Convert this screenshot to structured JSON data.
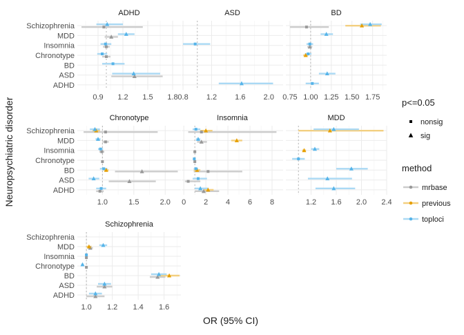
{
  "figure": {
    "xlabel": "OR (95% CI)",
    "ylabel": "Neuropsychiatric disorder"
  },
  "chart_data": {
    "type": "scatter",
    "categories": [
      "Schizophrenia",
      "MDD",
      "Insomnia",
      "Chronotype",
      "BD",
      "ASD",
      "ADHD"
    ],
    "legend": {
      "shape": {
        "title": "p<=0.05",
        "entries": [
          {
            "label": "nonsig",
            "marker": "square"
          },
          {
            "label": "sig",
            "marker": "triangle"
          }
        ]
      },
      "color": {
        "title": "method",
        "entries": [
          {
            "label": "mrbase",
            "color": "#999999",
            "ci_color": "#cccccc"
          },
          {
            "label": "previous",
            "color": "#E69F00",
            "ci_color": "#f3cf80"
          },
          {
            "label": "toploci",
            "color": "#56B4E9",
            "ci_color": "#aad9f4"
          }
        ]
      },
      "placement": "right"
    },
    "grid": true,
    "reference_line": 1,
    "panels": [
      {
        "title": "ADHD",
        "xlim": [
          0.65,
          1.9
        ],
        "xticks": [
          0.9,
          1.2,
          1.5,
          1.8
        ],
        "xtick_labels": [
          "0.9",
          "1.2",
          "1.5",
          "1.8"
        ],
        "points": [
          {
            "category": "Schizophrenia",
            "method": "mrbase",
            "or": 0.97,
            "lo": 0.7,
            "hi": 1.44,
            "sig": false
          },
          {
            "category": "Schizophrenia",
            "method": "toploci",
            "or": 1.01,
            "lo": 0.88,
            "hi": 1.2,
            "sig": true
          },
          {
            "category": "MDD",
            "method": "mrbase",
            "or": 1.06,
            "lo": 0.98,
            "hi": 1.14,
            "sig": true
          },
          {
            "category": "MDD",
            "method": "toploci",
            "or": 1.24,
            "lo": 1.14,
            "hi": 1.34,
            "sig": true
          },
          {
            "category": "Insomnia",
            "method": "mrbase",
            "or": 1.0,
            "lo": 0.96,
            "hi": 1.04,
            "sig": false
          },
          {
            "category": "Insomnia",
            "method": "toploci",
            "or": 0.99,
            "lo": 0.93,
            "hi": 1.06,
            "sig": false
          },
          {
            "category": "Chronotype",
            "method": "mrbase",
            "or": 1.0,
            "lo": 0.95,
            "hi": 1.05,
            "sig": false
          },
          {
            "category": "Chronotype",
            "method": "toploci",
            "or": 0.95,
            "lo": 0.89,
            "hi": 1.01,
            "sig": false
          },
          {
            "category": "BD",
            "method": "toploci",
            "or": 1.08,
            "lo": 0.95,
            "hi": 1.22,
            "sig": false
          },
          {
            "category": "ASD",
            "method": "mrbase",
            "or": 1.34,
            "lo": 1.06,
            "hi": 1.68,
            "sig": true
          },
          {
            "category": "ASD",
            "method": "toploci",
            "or": 1.33,
            "lo": 1.07,
            "hi": 1.65,
            "sig": true
          }
        ]
      },
      {
        "title": "ASD",
        "xlim": [
          0.78,
          2.2
        ],
        "xticks": [
          0.8,
          1.2,
          1.6,
          2.0
        ],
        "xtick_labels": [
          "0.8",
          "1.2",
          "1.6",
          "2.0"
        ],
        "points": [
          {
            "category": "Insomnia",
            "method": "toploci",
            "or": 0.97,
            "lo": 0.8,
            "hi": 1.18,
            "sig": false
          },
          {
            "category": "ADHD",
            "method": "toploci",
            "or": 1.62,
            "lo": 1.3,
            "hi": 2.06,
            "sig": true
          }
        ]
      },
      {
        "title": "BD",
        "xlim": [
          0.7,
          1.92
        ],
        "xticks": [
          0.75,
          1.0,
          1.25,
          1.5,
          1.75
        ],
        "xtick_labels": [
          "0.75",
          "1.00",
          "1.25",
          "1.50",
          "1.75"
        ],
        "points": [
          {
            "category": "Schizophrenia",
            "method": "mrbase",
            "or": 0.95,
            "lo": 0.75,
            "hi": 1.22,
            "sig": false
          },
          {
            "category": "Schizophrenia",
            "method": "previous",
            "or": 1.62,
            "lo": 1.42,
            "hi": 1.85,
            "sig": true
          },
          {
            "category": "Schizophrenia",
            "method": "toploci",
            "or": 1.72,
            "lo": 1.6,
            "hi": 1.86,
            "sig": true
          },
          {
            "category": "MDD",
            "method": "toploci",
            "or": 1.19,
            "lo": 1.12,
            "hi": 1.27,
            "sig": true
          },
          {
            "category": "Insomnia",
            "method": "mrbase",
            "or": 0.99,
            "lo": 0.96,
            "hi": 1.02,
            "sig": true
          },
          {
            "category": "Insomnia",
            "method": "toploci",
            "or": 0.99,
            "lo": 0.95,
            "hi": 1.03,
            "sig": false
          },
          {
            "category": "Chronotype",
            "method": "previous",
            "or": 0.94,
            "lo": 0.91,
            "hi": 0.97,
            "sig": true
          },
          {
            "category": "Chronotype",
            "method": "toploci",
            "or": 0.97,
            "lo": 0.93,
            "hi": 1.01,
            "sig": false
          },
          {
            "category": "ASD",
            "method": "toploci",
            "or": 1.2,
            "lo": 1.1,
            "hi": 1.3,
            "sig": true
          },
          {
            "category": "ADHD",
            "method": "toploci",
            "or": 1.02,
            "lo": 0.94,
            "hi": 1.1,
            "sig": false
          }
        ]
      },
      {
        "title": "Chronotype",
        "xlim": [
          0.6,
          2.25
        ],
        "xticks": [
          1.0,
          1.5,
          2.0
        ],
        "xtick_labels": [
          "1.0",
          "1.5",
          "2.0"
        ],
        "points": [
          {
            "category": "Schizophrenia",
            "method": "mrbase",
            "or": 1.05,
            "lo": 0.7,
            "hi": 1.88,
            "sig": false
          },
          {
            "category": "Schizophrenia",
            "method": "previous",
            "or": 0.9,
            "lo": 0.84,
            "hi": 0.96,
            "sig": true
          },
          {
            "category": "Schizophrenia",
            "method": "toploci",
            "or": 0.88,
            "lo": 0.8,
            "hi": 0.96,
            "sig": true
          },
          {
            "category": "MDD",
            "method": "mrbase",
            "or": 1.05,
            "lo": 1.0,
            "hi": 1.1,
            "sig": false
          },
          {
            "category": "MDD",
            "method": "toploci",
            "or": 0.93,
            "lo": 0.89,
            "hi": 0.97,
            "sig": true
          },
          {
            "category": "Insomnia",
            "method": "mrbase",
            "or": 0.99,
            "lo": 0.95,
            "hi": 1.03,
            "sig": false
          },
          {
            "category": "Insomnia",
            "method": "toploci",
            "or": 0.97,
            "lo": 0.93,
            "hi": 1.01,
            "sig": false
          },
          {
            "category": "Chronotype",
            "method": "mrbase",
            "or": 1.0,
            "lo": 1.0,
            "hi": 1.0,
            "sig": false
          },
          {
            "category": "BD",
            "method": "mrbase",
            "or": 1.63,
            "lo": 1.2,
            "hi": 2.2,
            "sig": true
          },
          {
            "category": "BD",
            "method": "previous",
            "or": 1.06,
            "lo": 1.02,
            "hi": 1.1,
            "sig": true
          },
          {
            "category": "BD",
            "method": "toploci",
            "or": 1.02,
            "lo": 0.96,
            "hi": 1.08,
            "sig": false
          },
          {
            "category": "ASD",
            "method": "mrbase",
            "or": 1.43,
            "lo": 1.1,
            "hi": 1.85,
            "sig": true
          },
          {
            "category": "ASD",
            "method": "toploci",
            "or": 0.86,
            "lo": 0.78,
            "hi": 0.95,
            "sig": true
          },
          {
            "category": "ADHD",
            "method": "mrbase",
            "or": 0.96,
            "lo": 0.9,
            "hi": 1.02,
            "sig": false
          },
          {
            "category": "ADHD",
            "method": "toploci",
            "or": 0.98,
            "lo": 0.9,
            "hi": 1.06,
            "sig": false
          }
        ]
      },
      {
        "title": "Insomnia",
        "xlim": [
          -0.2,
          9.0
        ],
        "xticks": [
          0,
          2,
          4,
          6,
          8
        ],
        "xtick_labels": [
          "0",
          "2",
          "4",
          "6",
          "8"
        ],
        "points": [
          {
            "category": "Schizophrenia",
            "method": "mrbase",
            "or": 1.6,
            "lo": 0.4,
            "hi": 8.4,
            "sig": false
          },
          {
            "category": "Schizophrenia",
            "method": "previous",
            "or": 2.0,
            "lo": 1.5,
            "hi": 2.6,
            "sig": true
          },
          {
            "category": "Schizophrenia",
            "method": "toploci",
            "or": 1.1,
            "lo": 0.8,
            "hi": 1.5,
            "sig": false
          },
          {
            "category": "MDD",
            "method": "mrbase",
            "or": 1.6,
            "lo": 1.2,
            "hi": 2.1,
            "sig": true
          },
          {
            "category": "MDD",
            "method": "previous",
            "or": 4.8,
            "lo": 4.3,
            "hi": 5.3,
            "sig": true
          },
          {
            "category": "MDD",
            "method": "toploci",
            "or": 1.3,
            "lo": 1.1,
            "hi": 1.5,
            "sig": true
          },
          {
            "category": "Insomnia",
            "method": "mrbase",
            "or": 1.0,
            "lo": 1.0,
            "hi": 1.0,
            "sig": false
          },
          {
            "category": "Chronotype",
            "method": "mrbase",
            "or": 1.0,
            "lo": 0.9,
            "hi": 1.1,
            "sig": false
          },
          {
            "category": "Chronotype",
            "method": "toploci",
            "or": 0.95,
            "lo": 0.85,
            "hi": 1.05,
            "sig": false
          },
          {
            "category": "BD",
            "method": "mrbase",
            "or": 2.2,
            "lo": 0.9,
            "hi": 5.3,
            "sig": false
          },
          {
            "category": "BD",
            "method": "previous",
            "or": 1.2,
            "lo": 0.9,
            "hi": 1.5,
            "sig": true
          },
          {
            "category": "BD",
            "method": "toploci",
            "or": 1.1,
            "lo": 0.9,
            "hi": 1.3,
            "sig": false
          },
          {
            "category": "ASD",
            "method": "mrbase",
            "or": 0.4,
            "lo": 0.1,
            "hi": 1.5,
            "sig": false
          },
          {
            "category": "ASD",
            "method": "toploci",
            "or": 1.3,
            "lo": 0.8,
            "hi": 2.1,
            "sig": false
          },
          {
            "category": "ADHD",
            "method": "mrbase",
            "or": 1.8,
            "lo": 1.0,
            "hi": 3.2,
            "sig": true
          },
          {
            "category": "ADHD",
            "method": "previous",
            "or": 2.2,
            "lo": 1.8,
            "hi": 2.7,
            "sig": true
          },
          {
            "category": "ADHD",
            "method": "toploci",
            "or": 1.5,
            "lo": 1.0,
            "hi": 2.2,
            "sig": true
          }
        ]
      },
      {
        "title": "MDD",
        "xlim": [
          0.8,
          2.4
        ],
        "xticks": [
          1.2,
          1.6,
          2.0,
          2.4
        ],
        "xtick_labels": [
          "1.2",
          "1.6",
          "2.0",
          "2.4"
        ],
        "points": [
          {
            "category": "Schizophrenia",
            "method": "previous",
            "or": 1.5,
            "lo": 1.0,
            "hi": 2.35,
            "sig": true
          },
          {
            "category": "Schizophrenia",
            "method": "toploci",
            "or": 1.56,
            "lo": 1.24,
            "hi": 1.96,
            "sig": true
          },
          {
            "category": "Insomnia",
            "method": "previous",
            "or": 1.09,
            "lo": 1.06,
            "hi": 1.12,
            "sig": true
          },
          {
            "category": "Insomnia",
            "method": "toploci",
            "or": 1.26,
            "lo": 1.2,
            "hi": 1.33,
            "sig": true
          },
          {
            "category": "Chronotype",
            "method": "toploci",
            "or": 1.0,
            "lo": 0.9,
            "hi": 1.1,
            "sig": false
          },
          {
            "category": "BD",
            "method": "toploci",
            "or": 1.84,
            "lo": 1.6,
            "hi": 2.1,
            "sig": true
          },
          {
            "category": "ASD",
            "method": "toploci",
            "or": 1.46,
            "lo": 1.15,
            "hi": 1.85,
            "sig": true
          },
          {
            "category": "ADHD",
            "method": "toploci",
            "or": 1.56,
            "lo": 1.27,
            "hi": 1.9,
            "sig": true
          }
        ]
      },
      {
        "title": "Schizophrenia",
        "xlim": [
          0.93,
          1.73
        ],
        "xticks": [
          1.0,
          1.2,
          1.4,
          1.6
        ],
        "xtick_labels": [
          "1.0",
          "1.2",
          "1.4",
          "1.6"
        ],
        "points": [
          {
            "category": "MDD",
            "method": "mrbase",
            "or": 1.03,
            "lo": 1.01,
            "hi": 1.05,
            "sig": true
          },
          {
            "category": "MDD",
            "method": "previous",
            "or": 1.02,
            "lo": 1.0,
            "hi": 1.04,
            "sig": true
          },
          {
            "category": "MDD",
            "method": "toploci",
            "or": 1.13,
            "lo": 1.1,
            "hi": 1.16,
            "sig": true
          },
          {
            "category": "Insomnia",
            "method": "mrbase",
            "or": 1.0,
            "lo": 0.99,
            "hi": 1.01,
            "sig": false
          },
          {
            "category": "Insomnia",
            "method": "toploci",
            "or": 1.0,
            "lo": 0.99,
            "hi": 1.01,
            "sig": false
          },
          {
            "category": "Chronotype",
            "method": "mrbase",
            "or": 1.0,
            "lo": 0.99,
            "hi": 1.01,
            "sig": false
          },
          {
            "category": "Chronotype",
            "method": "toploci",
            "or": 0.97,
            "lo": 0.96,
            "hi": 0.98,
            "sig": true
          },
          {
            "category": "BD",
            "method": "mrbase",
            "or": 1.55,
            "lo": 1.49,
            "hi": 1.61,
            "sig": true
          },
          {
            "category": "BD",
            "method": "previous",
            "or": 1.64,
            "lo": 1.56,
            "hi": 1.72,
            "sig": true
          },
          {
            "category": "BD",
            "method": "toploci",
            "or": 1.56,
            "lo": 1.5,
            "hi": 1.62,
            "sig": true
          },
          {
            "category": "ASD",
            "method": "mrbase",
            "or": 1.14,
            "lo": 1.08,
            "hi": 1.2,
            "sig": true
          },
          {
            "category": "ASD",
            "method": "toploci",
            "or": 1.14,
            "lo": 1.09,
            "hi": 1.19,
            "sig": true
          },
          {
            "category": "ADHD",
            "method": "mrbase",
            "or": 1.07,
            "lo": 1.0,
            "hi": 1.14,
            "sig": true
          },
          {
            "category": "ADHD",
            "method": "toploci",
            "or": 1.07,
            "lo": 1.02,
            "hi": 1.12,
            "sig": true
          }
        ]
      }
    ]
  }
}
